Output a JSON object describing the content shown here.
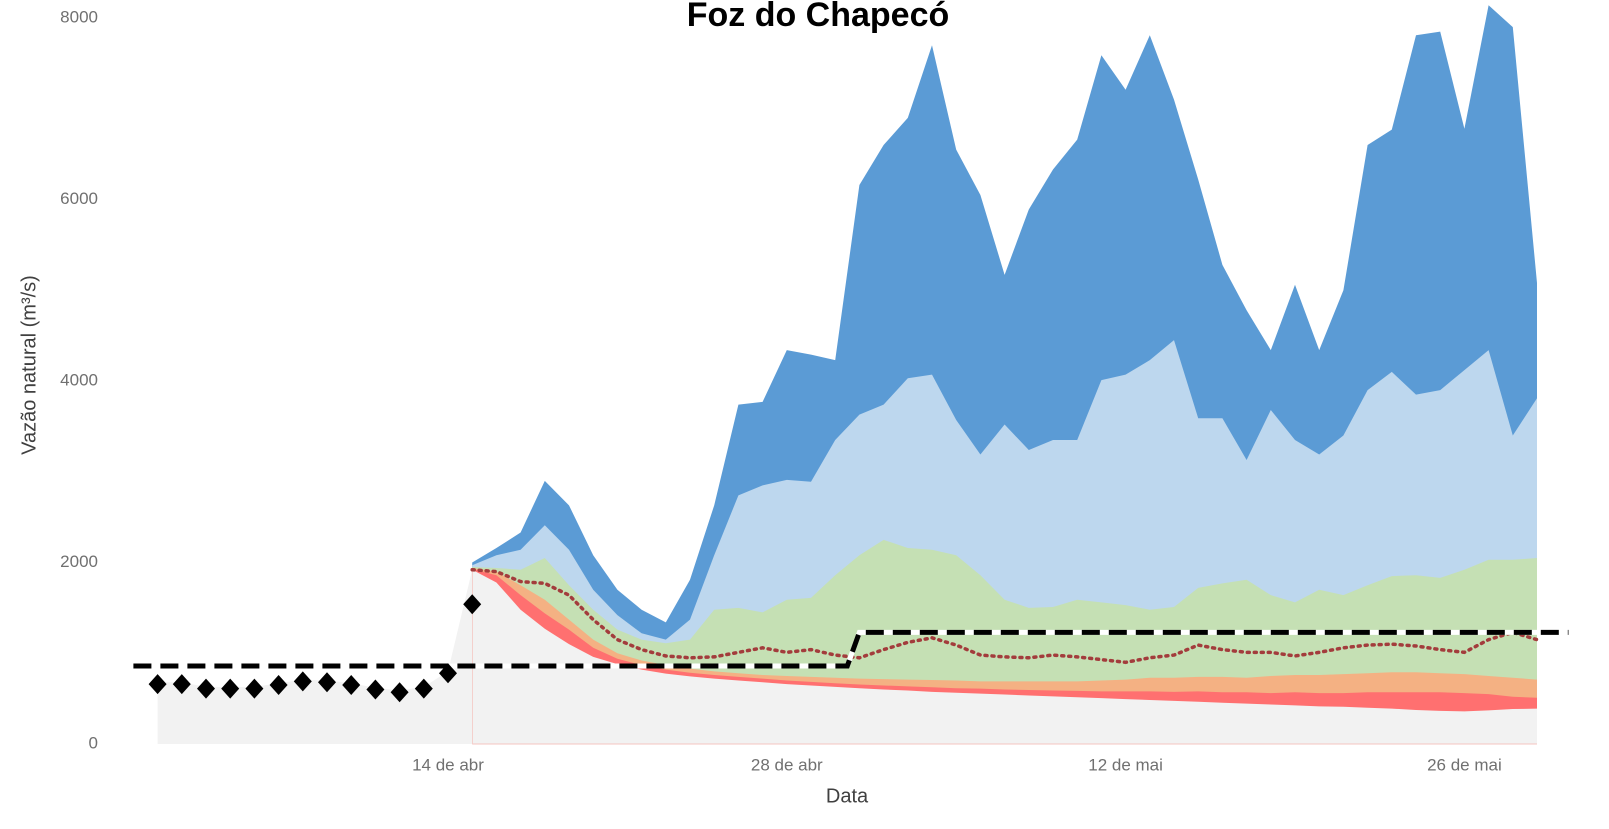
{
  "chart_data": {
    "type": "area",
    "title": "Foz do Chapecó",
    "x_label": "Data",
    "y_label": "Vazão natural (m³/s)",
    "xlim": [
      1,
      59
    ],
    "xticks": [
      {
        "value": 14,
        "label": "14 de abr"
      },
      {
        "value": 28,
        "label": "28 de abr"
      },
      {
        "value": 42,
        "label": "12 de mai"
      },
      {
        "value": 56,
        "label": "26 de mai"
      }
    ],
    "ylim": [
      0,
      8000
    ],
    "yticks": [
      0,
      2000,
      4000,
      6000,
      8000
    ],
    "grid": false,
    "x": [
      15,
      16,
      17,
      18,
      19,
      20,
      21,
      22,
      23,
      24,
      25,
      26,
      27,
      28,
      29,
      30,
      31,
      32,
      33,
      34,
      35,
      36,
      37,
      38,
      39,
      40,
      41,
      42,
      43,
      44,
      45,
      46,
      47,
      48,
      49,
      50,
      51,
      52,
      53,
      54,
      55,
      56,
      57,
      58,
      59
    ],
    "series": [
      {
        "kind": "area",
        "color": "#5b9bd5",
        "values": [
          2000,
          2160,
          2330,
          2900,
          2630,
          2080,
          1700,
          1480,
          1340,
          1810,
          2630,
          3740,
          3770,
          4340,
          4290,
          4230,
          6160,
          6600,
          6900,
          7700,
          6550,
          6050,
          5170,
          5890,
          6330,
          6660,
          7590,
          7210,
          7810,
          7100,
          6220,
          5280,
          4780,
          4340,
          5060,
          4340,
          5000,
          6600,
          6770,
          7810,
          7850,
          6780,
          8140,
          7900,
          5080
        ]
      },
      {
        "kind": "area",
        "color": "#bdd7ee",
        "values": [
          1970,
          2080,
          2140,
          2410,
          2140,
          1700,
          1420,
          1220,
          1150,
          1370,
          2080,
          2740,
          2850,
          2910,
          2890,
          3350,
          3630,
          3740,
          4030,
          4070,
          3570,
          3190,
          3520,
          3240,
          3350,
          3350,
          4010,
          4070,
          4230,
          4450,
          3590,
          3590,
          3130,
          3680,
          3350,
          3190,
          3400,
          3900,
          4100,
          3850,
          3900,
          4120,
          4340,
          3400,
          3810
        ]
      },
      {
        "kind": "area",
        "color": "#c5e0b4",
        "values": [
          1950,
          1940,
          1920,
          2050,
          1750,
          1480,
          1260,
          1150,
          1110,
          1150,
          1480,
          1500,
          1450,
          1590,
          1610,
          1860,
          2080,
          2250,
          2160,
          2140,
          2080,
          1860,
          1590,
          1500,
          1510,
          1590,
          1560,
          1530,
          1480,
          1510,
          1720,
          1770,
          1810,
          1640,
          1560,
          1700,
          1640,
          1750,
          1850,
          1860,
          1830,
          1920,
          2030,
          2030,
          2050
        ]
      },
      {
        "kind": "area",
        "color": "#f4b183",
        "values": [
          1940,
          1900,
          1750,
          1590,
          1370,
          1150,
          1000,
          920,
          870,
          830,
          800,
          780,
          760,
          750,
          740,
          730,
          720,
          715,
          710,
          705,
          700,
          690,
          690,
          690,
          690,
          690,
          700,
          710,
          730,
          730,
          740,
          740,
          730,
          750,
          760,
          760,
          770,
          780,
          790,
          790,
          780,
          770,
          750,
          730,
          710
        ]
      },
      {
        "kind": "area",
        "color": "#ff7070",
        "values": [
          1930,
          1860,
          1640,
          1440,
          1260,
          1060,
          940,
          870,
          820,
          785,
          760,
          740,
          720,
          700,
          685,
          670,
          655,
          645,
          635,
          625,
          615,
          610,
          600,
          595,
          590,
          585,
          580,
          580,
          580,
          575,
          580,
          570,
          570,
          560,
          570,
          560,
          560,
          570,
          570,
          570,
          570,
          560,
          550,
          520,
          510
        ]
      },
      {
        "kind": "area",
        "color": "#f2f2f2",
        "values": [
          1920,
          1780,
          1480,
          1270,
          1100,
          960,
          880,
          820,
          775,
          745,
          720,
          700,
          680,
          660,
          645,
          630,
          615,
          600,
          590,
          575,
          565,
          555,
          545,
          535,
          525,
          515,
          505,
          495,
          485,
          475,
          465,
          455,
          445,
          435,
          425,
          415,
          410,
          400,
          390,
          375,
          365,
          360,
          370,
          385,
          390
        ]
      },
      {
        "kind": "area",
        "color": "#f2f2f2",
        "x": [
          2,
          3,
          4,
          5,
          6,
          7,
          8,
          9,
          10,
          11,
          12,
          13,
          14,
          15
        ],
        "values": [
          680,
          680,
          630,
          630,
          630,
          670,
          710,
          700,
          670,
          620,
          590,
          630,
          800,
          1920
        ]
      },
      {
        "kind": "line",
        "color": "#a33c3c",
        "dash": "dotted",
        "values": [
          1920,
          1900,
          1790,
          1770,
          1640,
          1370,
          1150,
          1040,
          970,
          950,
          960,
          1010,
          1060,
          1010,
          1040,
          980,
          950,
          1040,
          1120,
          1170,
          1090,
          980,
          960,
          950,
          980,
          960,
          930,
          900,
          950,
          980,
          1090,
          1040,
          1010,
          1010,
          970,
          1010,
          1060,
          1090,
          1100,
          1080,
          1040,
          1010,
          1150,
          1230,
          1150
        ]
      },
      {
        "kind": "line",
        "color": "#000000",
        "dash": "dashed",
        "x": [
          1,
          30.5,
          31,
          60.3
        ],
        "values": [
          860,
          860,
          1230,
          1230
        ]
      },
      {
        "kind": "scatter",
        "marker": "diamond",
        "color": "#000000",
        "x": [
          2,
          3,
          4,
          5,
          6,
          7,
          8,
          9,
          10,
          11,
          12,
          13,
          14,
          15
        ],
        "values": [
          660,
          660,
          610,
          610,
          610,
          650,
          690,
          680,
          650,
          600,
          570,
          610,
          780,
          1540
        ]
      }
    ]
  }
}
